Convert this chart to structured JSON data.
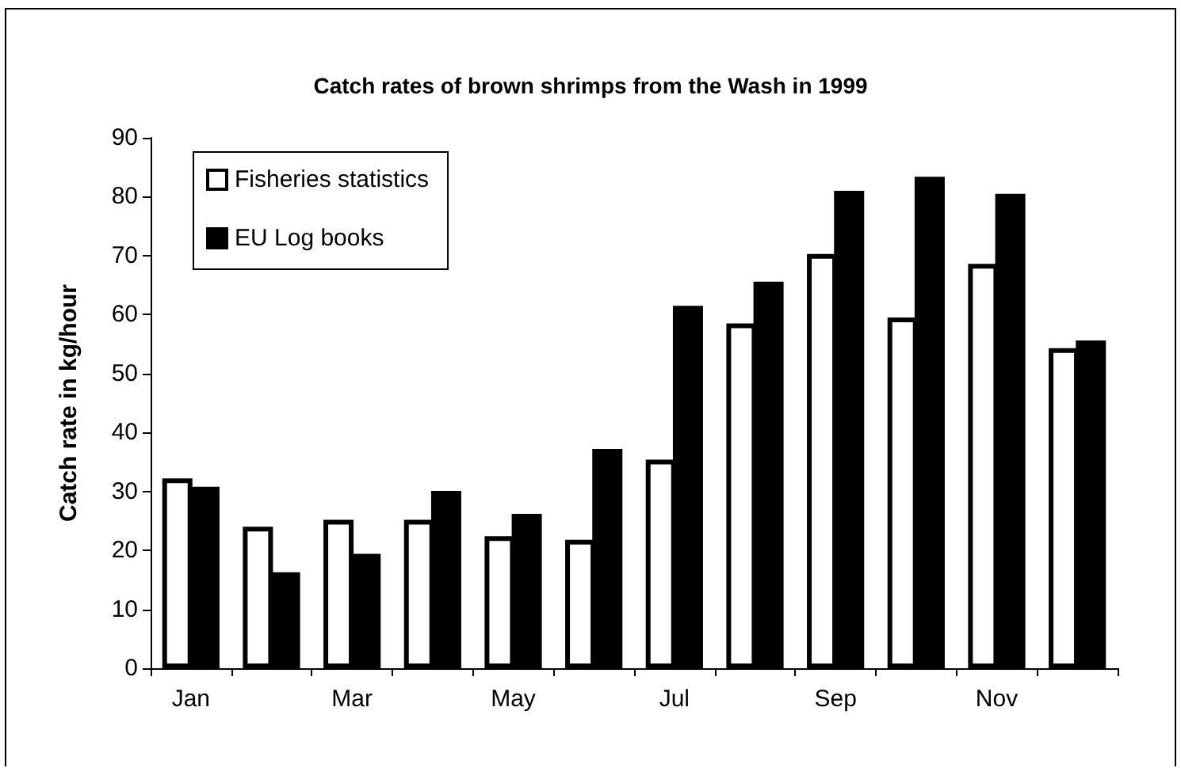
{
  "chart_data": {
    "type": "bar",
    "title": "Catch rates of brown shrimps from the Wash in 1999",
    "ylabel": "Catch rate in kg/hour",
    "categories": [
      "Jan",
      null,
      "Mar",
      null,
      "May",
      null,
      "Jul",
      null,
      "Sep",
      null,
      "Nov",
      null
    ],
    "series": [
      {
        "name": "Fisheries statistics",
        "color": "#ffffff",
        "values": [
          32.2,
          24,
          25.2,
          25.2,
          22.4,
          21.8,
          35.4,
          58.5,
          70.3,
          59.5,
          68.6,
          54.3
        ]
      },
      {
        "name": "EU Log books",
        "color": "#000000",
        "values": [
          30.8,
          16.3,
          19.4,
          30.1,
          26.2,
          37.2,
          61.5,
          65.6,
          81,
          83.4,
          80.5,
          55.6
        ]
      }
    ],
    "ylim": [
      0,
      90
    ],
    "yticks": [
      0,
      10,
      20,
      30,
      40,
      50,
      60,
      70,
      80,
      90
    ],
    "grid": false,
    "legend": "top left"
  }
}
